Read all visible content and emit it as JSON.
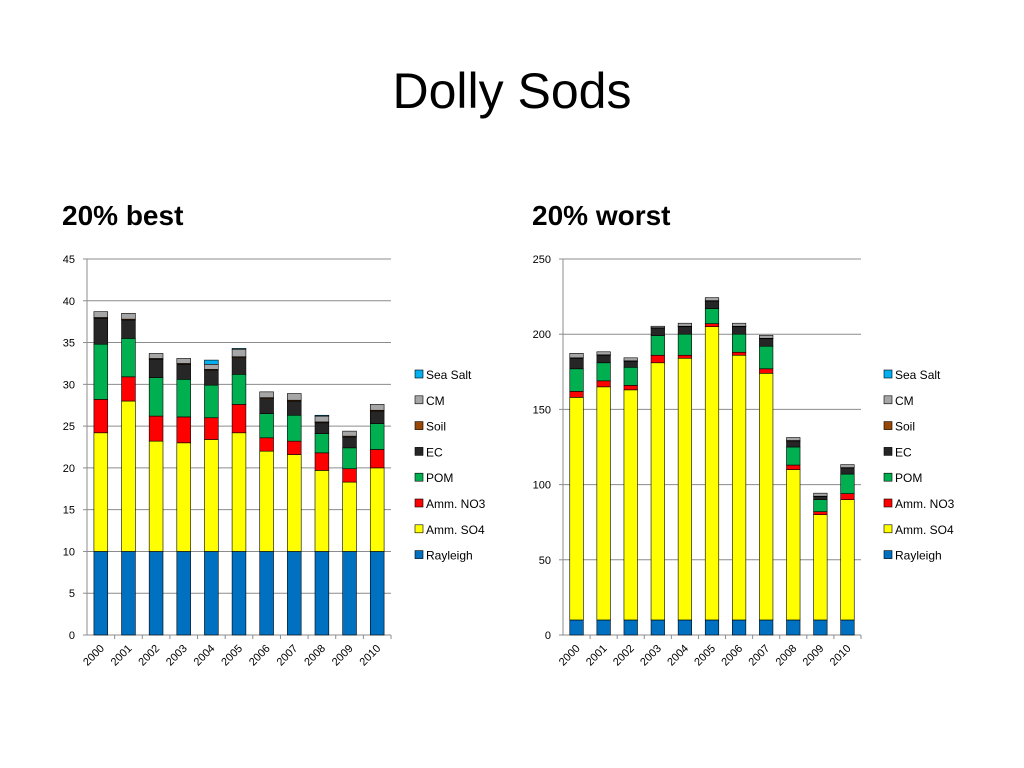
{
  "slide": {
    "title": "Dolly Sods"
  },
  "chart_data": [
    {
      "type": "bar",
      "stacked": true,
      "title": "20% best",
      "xlabel": "",
      "ylabel": "",
      "ylim": [
        0,
        45
      ],
      "yticks": [
        0,
        5,
        10,
        15,
        20,
        25,
        30,
        35,
        40,
        45
      ],
      "grid": true,
      "legend_position": "right",
      "categories": [
        "2000",
        "2001",
        "2002",
        "2003",
        "2004",
        "2005",
        "2006",
        "2007",
        "2008",
        "2009",
        "2010"
      ],
      "series": [
        {
          "name": "Rayleigh",
          "color": "#0070C0",
          "values": [
            10,
            10,
            10,
            10,
            10,
            10,
            10,
            10,
            10,
            10,
            10
          ]
        },
        {
          "name": "Amm. SO4",
          "color": "#FFFF00",
          "values": [
            14.2,
            18,
            13.2,
            13,
            13.4,
            14.2,
            12,
            11.6,
            9.7,
            8.3,
            10
          ]
        },
        {
          "name": "Amm. NO3",
          "color": "#FF0000",
          "values": [
            4,
            2.9,
            3,
            3.1,
            2.6,
            3.4,
            1.6,
            1.6,
            2.1,
            1.6,
            2.2
          ]
        },
        {
          "name": "POM",
          "color": "#00B050",
          "values": [
            6.6,
            4.6,
            4.6,
            4.5,
            3.9,
            3.6,
            2.9,
            3.1,
            2.3,
            2.5,
            3.1
          ]
        },
        {
          "name": "EC",
          "color": "#262626",
          "values": [
            3.1,
            2.2,
            2.2,
            1.8,
            1.8,
            2,
            1.8,
            1.7,
            1.3,
            1.3,
            1.5
          ]
        },
        {
          "name": "Soil",
          "color": "#974706",
          "values": [
            0.1,
            0.1,
            0.1,
            0.1,
            0.1,
            0.1,
            0.1,
            0.1,
            0.1,
            0.1,
            0.1
          ]
        },
        {
          "name": "CM",
          "color": "#A6A6A6",
          "values": [
            0.7,
            0.7,
            0.6,
            0.6,
            0.6,
            0.9,
            0.7,
            0.8,
            0.7,
            0.6,
            0.7
          ]
        },
        {
          "name": "Sea Salt",
          "color": "#00B0F0",
          "values": [
            0,
            0,
            0,
            0,
            0.5,
            0.1,
            0,
            0,
            0.1,
            0,
            0
          ]
        }
      ]
    },
    {
      "type": "bar",
      "stacked": true,
      "title": "20% worst",
      "xlabel": "",
      "ylabel": "",
      "ylim": [
        0,
        250
      ],
      "yticks": [
        0,
        50,
        100,
        150,
        200,
        250
      ],
      "grid": true,
      "legend_position": "right",
      "categories": [
        "2000",
        "2001",
        "2002",
        "2003",
        "2004",
        "2005",
        "2006",
        "2007",
        "2008",
        "2009",
        "2010"
      ],
      "series": [
        {
          "name": "Rayleigh",
          "color": "#0070C0",
          "values": [
            10,
            10,
            10,
            10,
            10,
            10,
            10,
            10,
            10,
            10,
            10
          ]
        },
        {
          "name": "Amm. SO4",
          "color": "#FFFF00",
          "values": [
            148,
            155,
            153,
            171,
            174,
            195,
            176,
            164,
            100,
            70,
            80
          ]
        },
        {
          "name": "Amm. NO3",
          "color": "#FF0000",
          "values": [
            4,
            4,
            3,
            5,
            2,
            2,
            2,
            3,
            3,
            2,
            4
          ]
        },
        {
          "name": "POM",
          "color": "#00B050",
          "values": [
            15,
            12,
            12,
            13,
            14,
            10,
            12,
            15,
            12,
            8,
            13
          ]
        },
        {
          "name": "EC",
          "color": "#262626",
          "values": [
            7,
            5,
            4,
            5,
            5,
            5,
            5,
            5,
            4,
            2,
            4
          ]
        },
        {
          "name": "Soil",
          "color": "#974706",
          "values": [
            0.3,
            0.3,
            0.3,
            0.3,
            0.3,
            0.3,
            0.3,
            0.3,
            0.3,
            0.3,
            0.3
          ]
        },
        {
          "name": "CM",
          "color": "#A6A6A6",
          "values": [
            3,
            2,
            2,
            1,
            2,
            2,
            2,
            2,
            2,
            2,
            2
          ]
        },
        {
          "name": "Sea Salt",
          "color": "#00B0F0",
          "values": [
            0,
            0,
            0,
            0,
            0,
            0,
            0,
            0,
            0,
            0,
            0
          ]
        }
      ]
    }
  ]
}
